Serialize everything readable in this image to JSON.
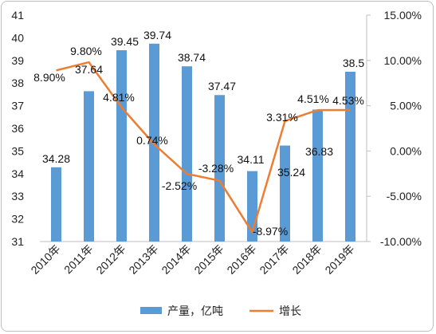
{
  "chart_data": {
    "type": "bar",
    "categories": [
      "2010年",
      "2011年",
      "2012年",
      "2013年",
      "2014年",
      "2015年",
      "2016年",
      "2017年",
      "2018年",
      "2019年"
    ],
    "series": [
      {
        "name": "产量，亿吨",
        "type": "bar",
        "axis": "left",
        "values": [
          34.28,
          37.64,
          39.45,
          39.74,
          38.74,
          37.47,
          34.11,
          35.24,
          36.83,
          38.5
        ],
        "labels": [
          "34.28",
          "37.64",
          "39.45",
          "39.74",
          "38.74",
          "37.47",
          "34.11",
          "35.24",
          "36.83",
          "38.5"
        ],
        "color": "#5b9bd5"
      },
      {
        "name": "增长",
        "type": "line",
        "axis": "right",
        "values": [
          8.9,
          9.8,
          4.81,
          0.74,
          -2.52,
          -3.28,
          -8.97,
          3.31,
          4.51,
          4.53
        ],
        "labels": [
          "8.90%",
          "9.80%",
          "4.81%",
          "0.74%",
          "-2.52%",
          "-3.28%",
          "-8.97%",
          "3.31%",
          "4.51%",
          "4.53%"
        ],
        "color": "#ed7d31"
      }
    ],
    "y_left": {
      "min": 31,
      "max": 41,
      "ticks": [
        "31",
        "32",
        "33",
        "34",
        "35",
        "36",
        "37",
        "38",
        "39",
        "40",
        "41"
      ]
    },
    "y_right": {
      "min": -10,
      "max": 15,
      "ticks": [
        "-10.00%",
        "-5.00%",
        "0.00%",
        "5.00%",
        "10.00%",
        "15.00%"
      ]
    },
    "grid": false,
    "legend_position": "bottom",
    "legend": [
      {
        "label": "产量，亿吨",
        "marker": "bar"
      },
      {
        "label": "增长",
        "marker": "line"
      }
    ]
  }
}
